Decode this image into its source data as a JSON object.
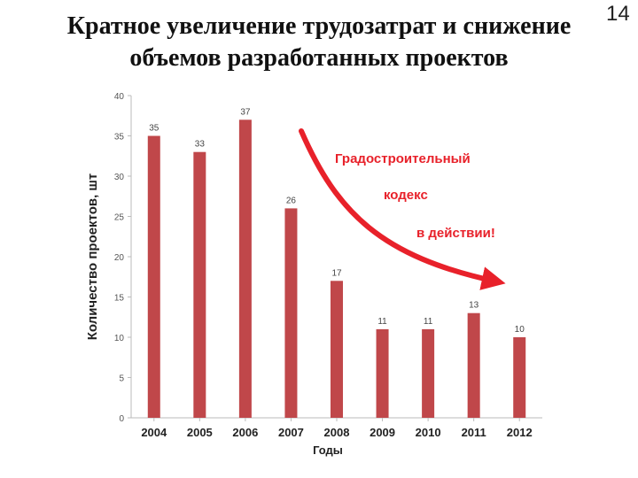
{
  "slide": {
    "title_line1": "Кратное увеличение трудозатрат и снижение",
    "title_line2": "объемов разработанных проектов",
    "page_number": "14"
  },
  "annotation": {
    "lines": [
      "Градостроительный",
      "кодекс",
      "в действии!"
    ],
    "color": "#e8212a"
  },
  "chart_data": {
    "type": "bar",
    "categories": [
      "2004",
      "2005",
      "2006",
      "2007",
      "2008",
      "2009",
      "2010",
      "2011",
      "2012"
    ],
    "values": [
      35,
      33,
      37,
      26,
      17,
      11,
      11,
      13,
      10
    ],
    "xlabel": "Годы",
    "ylabel": "Количество проектов, шт",
    "ylim": [
      0,
      40
    ],
    "yticks": [
      0,
      5,
      10,
      15,
      20,
      25,
      30,
      35,
      40
    ],
    "grid": false,
    "bar_color": "#c0474a",
    "data_labels": true
  }
}
